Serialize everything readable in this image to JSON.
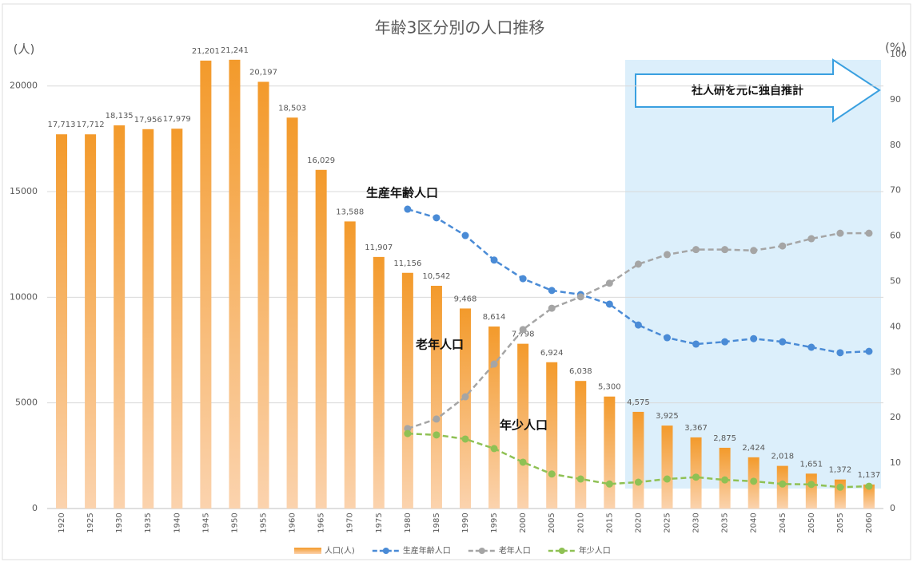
{
  "chart_data": {
    "type": "bar",
    "title": "年齢3区分別の人口推移",
    "y_label": "(人)",
    "y2_label": "(%)",
    "annotations": [
      "生産年齢人口",
      "老年人口",
      "年少人口",
      "社人研を元に独自推計"
    ],
    "categories": [
      "1920",
      "1925",
      "1930",
      "1935",
      "1940",
      "1945",
      "1950",
      "1955",
      "1960",
      "1965",
      "1970",
      "1975",
      "1980",
      "1985",
      "1990",
      "1995",
      "2000",
      "2005",
      "2010",
      "2015",
      "2020",
      "2025",
      "2030",
      "2035",
      "2040",
      "2045",
      "2050",
      "2055",
      "2060"
    ],
    "bar_series": {
      "name": "人口(人)",
      "color": "#f39a2b",
      "values": [
        17713,
        17712,
        18135,
        17956,
        17979,
        21201,
        21241,
        20197,
        18503,
        16029,
        13588,
        11907,
        11156,
        10542,
        9468,
        8614,
        7798,
        6924,
        6038,
        5300,
        4575,
        3925,
        3367,
        2875,
        2424,
        2018,
        1651,
        1372,
        1137
      ],
      "value_labels": [
        "17,713",
        "17,712",
        "18,135",
        "17,956",
        "17,979",
        "21,201",
        "21,241",
        "20,197",
        "18,503",
        "16,029",
        "13,588",
        "11,907",
        "11,156",
        "10,542",
        "9,468",
        "8,614",
        "7,798",
        "6,924",
        "6,038",
        "5,300",
        "4,575",
        "3,925",
        "3,367",
        "2,875",
        "2,424",
        "2,018",
        "1,651",
        "1,372",
        "1,137"
      ]
    },
    "series": [
      {
        "name": "生産年齢人口",
        "color": "#4a8bd6",
        "axis": "y2",
        "values": [
          null,
          null,
          null,
          null,
          null,
          null,
          null,
          null,
          null,
          null,
          null,
          null,
          65.9,
          64.0,
          60.1,
          54.7,
          50.6,
          48.0,
          47.1,
          45.0,
          40.4,
          37.6,
          36.2,
          36.7,
          37.4,
          36.7,
          35.5,
          34.3,
          34.6
        ]
      },
      {
        "name": "老年人口",
        "color": "#a5a5a5",
        "axis": "y2",
        "values": [
          null,
          null,
          null,
          null,
          null,
          null,
          null,
          null,
          null,
          null,
          null,
          null,
          17.6,
          19.7,
          24.6,
          31.8,
          39.4,
          44.1,
          46.6,
          49.6,
          53.8,
          55.9,
          57.0,
          57.0,
          56.8,
          57.8,
          59.4,
          60.6,
          60.6
        ]
      },
      {
        "name": "年少人口",
        "color": "#8fc154",
        "axis": "y2",
        "values": [
          null,
          null,
          null,
          null,
          null,
          null,
          null,
          null,
          null,
          null,
          null,
          null,
          16.5,
          16.2,
          15.3,
          13.2,
          10.2,
          7.6,
          6.5,
          5.4,
          5.8,
          6.5,
          6.9,
          6.3,
          6.0,
          5.4,
          5.3,
          4.7,
          4.9
        ]
      }
    ],
    "ylim": [
      0,
      21500
    ],
    "yticks": [
      0,
      5000,
      10000,
      15000,
      20000
    ],
    "y2lim": [
      0,
      100
    ],
    "y2ticks": [
      0,
      10,
      20,
      30,
      40,
      50,
      60,
      70,
      80,
      90,
      100
    ],
    "grid": true
  }
}
